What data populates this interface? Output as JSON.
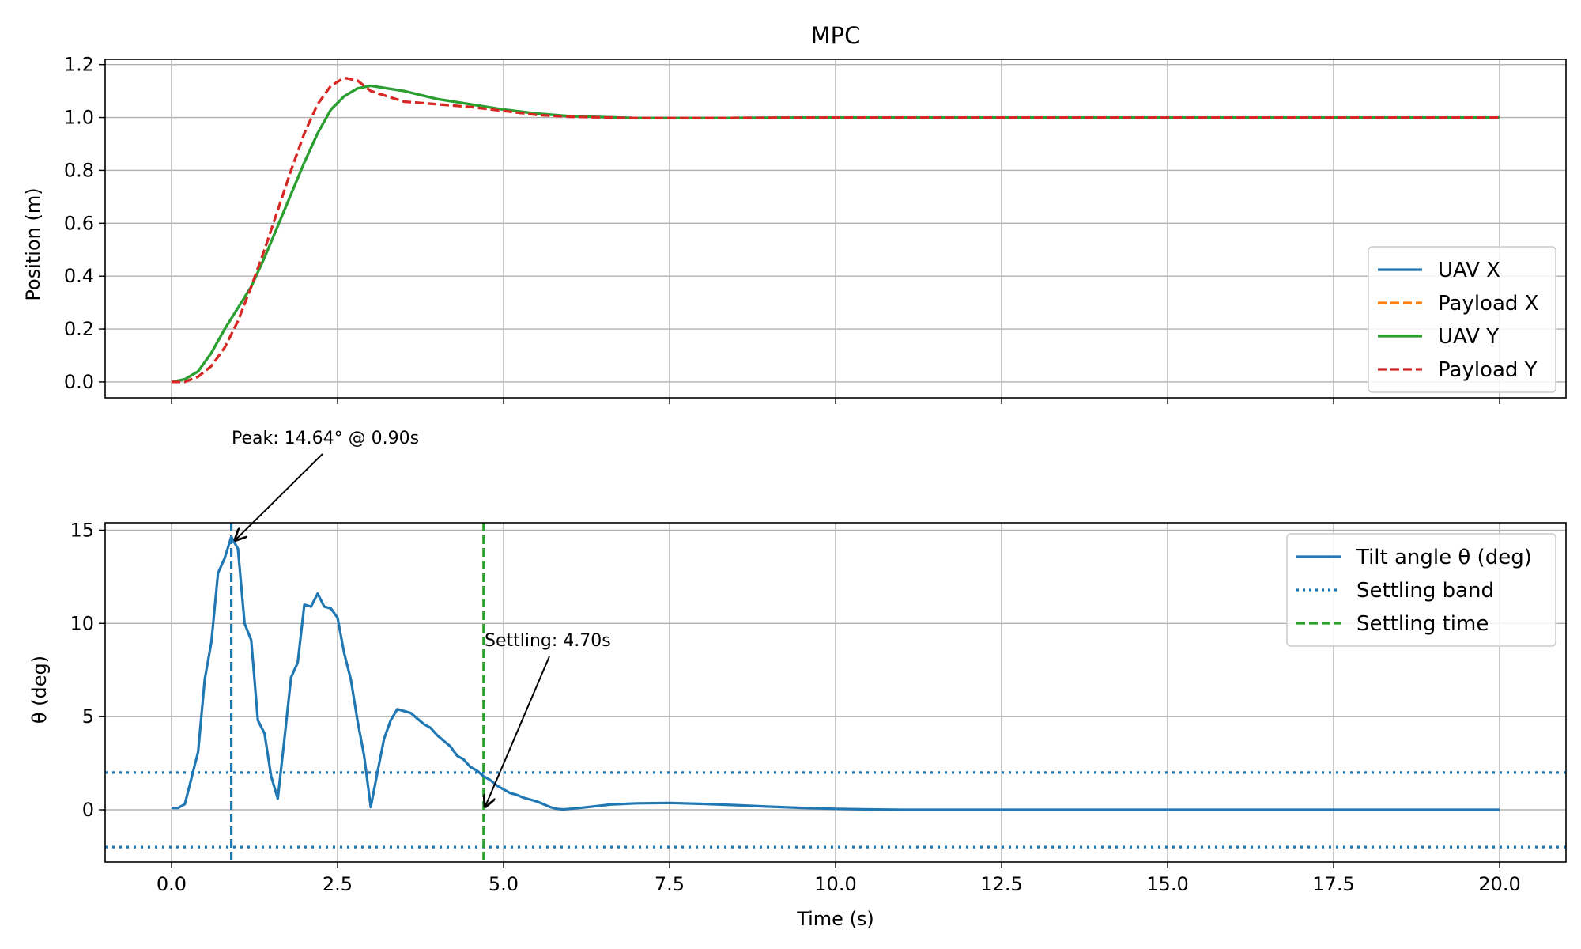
{
  "chart_data": [
    {
      "type": "line",
      "title": "MPC",
      "xlabel": "",
      "ylabel": "Position (m)",
      "xlim": [
        -1.0,
        21.0
      ],
      "ylim": [
        -0.06,
        1.22
      ],
      "xticks": [
        0.0,
        2.5,
        5.0,
        7.5,
        10.0,
        12.5,
        15.0,
        17.5,
        20.0
      ],
      "yticks": [
        0.0,
        0.2,
        0.4,
        0.6,
        0.8,
        1.0,
        1.2
      ],
      "ytick_labels": [
        "0.0",
        "0.2",
        "0.4",
        "0.6",
        "0.8",
        "1.0",
        "1.2"
      ],
      "grid": true,
      "legend_position": "lower-right",
      "series": [
        {
          "name": "UAV X",
          "color": "#1f77b4",
          "style": "solid",
          "x": [
            0.0,
            0.2,
            0.4,
            0.6,
            0.8,
            1.0,
            1.2,
            1.4,
            1.6,
            1.8,
            2.0,
            2.2,
            2.4,
            2.6,
            2.8,
            3.0,
            3.5,
            4.0,
            4.5,
            5.0,
            5.5,
            6.0,
            7.0,
            8.0,
            10.0,
            12.0,
            15.0,
            20.0
          ],
          "y": [
            0.0,
            0.01,
            0.04,
            0.11,
            0.2,
            0.28,
            0.36,
            0.47,
            0.59,
            0.71,
            0.83,
            0.94,
            1.03,
            1.08,
            1.11,
            1.12,
            1.1,
            1.07,
            1.05,
            1.03,
            1.015,
            1.005,
            0.998,
            0.998,
            1.0,
            1.0,
            1.0,
            1.0
          ]
        },
        {
          "name": "Payload X",
          "color": "#ff7f0e",
          "style": "dashed",
          "x": [
            0.0,
            0.2,
            0.4,
            0.6,
            0.8,
            1.0,
            1.2,
            1.4,
            1.6,
            1.8,
            2.0,
            2.2,
            2.4,
            2.6,
            2.8,
            3.0,
            3.5,
            4.0,
            4.5,
            5.0,
            5.5,
            6.0,
            7.0,
            8.0,
            10.0,
            12.0,
            15.0,
            20.0
          ],
          "y": [
            0.0,
            0.0,
            0.02,
            0.06,
            0.13,
            0.23,
            0.36,
            0.5,
            0.65,
            0.8,
            0.94,
            1.05,
            1.12,
            1.15,
            1.14,
            1.1,
            1.06,
            1.05,
            1.04,
            1.025,
            1.01,
            1.003,
            0.998,
            0.998,
            1.0,
            1.0,
            1.0,
            1.0
          ]
        },
        {
          "name": "UAV Y",
          "color": "#2ca02c",
          "style": "solid",
          "x": [
            0.0,
            0.2,
            0.4,
            0.6,
            0.8,
            1.0,
            1.2,
            1.4,
            1.6,
            1.8,
            2.0,
            2.2,
            2.4,
            2.6,
            2.8,
            3.0,
            3.5,
            4.0,
            4.5,
            5.0,
            5.5,
            6.0,
            7.0,
            8.0,
            10.0,
            12.0,
            15.0,
            20.0
          ],
          "y": [
            0.0,
            0.01,
            0.04,
            0.11,
            0.2,
            0.28,
            0.36,
            0.47,
            0.59,
            0.71,
            0.83,
            0.94,
            1.03,
            1.08,
            1.11,
            1.12,
            1.1,
            1.07,
            1.05,
            1.03,
            1.015,
            1.005,
            0.998,
            0.998,
            1.0,
            1.0,
            1.0,
            1.0
          ]
        },
        {
          "name": "Payload Y",
          "color": "#d62728",
          "style": "dashed",
          "x": [
            0.0,
            0.2,
            0.4,
            0.6,
            0.8,
            1.0,
            1.2,
            1.4,
            1.6,
            1.8,
            2.0,
            2.2,
            2.4,
            2.6,
            2.8,
            3.0,
            3.5,
            4.0,
            4.5,
            5.0,
            5.5,
            6.0,
            7.0,
            8.0,
            10.0,
            12.0,
            15.0,
            20.0
          ],
          "y": [
            0.0,
            0.0,
            0.02,
            0.06,
            0.13,
            0.23,
            0.36,
            0.5,
            0.65,
            0.8,
            0.94,
            1.05,
            1.12,
            1.15,
            1.14,
            1.1,
            1.06,
            1.05,
            1.04,
            1.025,
            1.01,
            1.003,
            0.998,
            0.998,
            1.0,
            1.0,
            1.0,
            1.0
          ]
        }
      ]
    },
    {
      "type": "line",
      "title": "",
      "xlabel": "Time (s)",
      "ylabel": "θ (deg)",
      "xlim": [
        -1.0,
        21.0
      ],
      "ylim": [
        -2.8,
        15.4
      ],
      "xticks": [
        0.0,
        2.5,
        5.0,
        7.5,
        10.0,
        12.5,
        15.0,
        17.5,
        20.0
      ],
      "xtick_labels": [
        "0.0",
        "2.5",
        "5.0",
        "7.5",
        "10.0",
        "12.5",
        "15.0",
        "17.5",
        "20.0"
      ],
      "yticks": [
        0,
        5,
        10,
        15
      ],
      "ytick_labels": [
        "0",
        "5",
        "10",
        "15"
      ],
      "grid": true,
      "legend_position": "upper-right",
      "series": [
        {
          "name": "Tilt angle θ (deg)",
          "color": "#1f77b4",
          "style": "solid",
          "x": [
            0.0,
            0.1,
            0.2,
            0.3,
            0.4,
            0.5,
            0.6,
            0.7,
            0.8,
            0.9,
            1.0,
            1.1,
            1.2,
            1.3,
            1.4,
            1.5,
            1.6,
            1.7,
            1.8,
            1.9,
            2.0,
            2.1,
            2.2,
            2.3,
            2.4,
            2.5,
            2.6,
            2.7,
            2.8,
            2.9,
            3.0,
            3.1,
            3.2,
            3.3,
            3.4,
            3.5,
            3.6,
            3.7,
            3.8,
            3.9,
            4.0,
            4.1,
            4.2,
            4.3,
            4.4,
            4.5,
            4.6,
            4.7,
            4.8,
            4.9,
            5.0,
            5.1,
            5.2,
            5.3,
            5.4,
            5.5,
            5.6,
            5.7,
            5.8,
            5.9,
            6.0,
            6.2,
            6.4,
            6.6,
            7.0,
            7.5,
            8.0,
            8.5,
            9.0,
            9.5,
            10.0,
            10.5,
            11.0,
            12.0,
            14.0,
            16.0,
            18.0,
            20.0
          ],
          "y": [
            0.1,
            0.1,
            0.3,
            1.7,
            3.1,
            7.0,
            9.0,
            12.7,
            13.5,
            14.64,
            14.0,
            10.0,
            9.1,
            4.8,
            4.1,
            1.8,
            0.6,
            3.8,
            7.1,
            7.9,
            11.0,
            10.9,
            11.6,
            10.9,
            10.8,
            10.3,
            8.4,
            7.0,
            4.8,
            2.9,
            0.15,
            2.0,
            3.8,
            4.8,
            5.4,
            5.3,
            5.2,
            4.9,
            4.6,
            4.4,
            4.0,
            3.7,
            3.4,
            2.9,
            2.7,
            2.3,
            2.1,
            1.8,
            1.6,
            1.3,
            1.1,
            0.9,
            0.8,
            0.65,
            0.55,
            0.45,
            0.3,
            0.15,
            0.05,
            0.02,
            0.05,
            0.12,
            0.2,
            0.28,
            0.35,
            0.37,
            0.32,
            0.25,
            0.17,
            0.1,
            0.05,
            0.02,
            0.0,
            0.0,
            0.0,
            0.0,
            0.0,
            0.0
          ]
        },
        {
          "name": "Settling band",
          "color": "#1f77b4",
          "style": "dotted",
          "y_values": [
            2.0,
            -2.0
          ]
        },
        {
          "name": "Settling time",
          "color": "#2ca02c",
          "style": "dashed",
          "x_value": 4.7
        }
      ],
      "peak_marker": {
        "x": 0.9,
        "y": 14.64,
        "color": "#1f77b4"
      },
      "annotations": [
        {
          "text": "Peak: 14.64° @ 0.90s",
          "x": 0.9,
          "y": 14.64
        },
        {
          "text": "Settling: 4.70s",
          "x": 4.7,
          "y": 0.0
        }
      ]
    }
  ]
}
